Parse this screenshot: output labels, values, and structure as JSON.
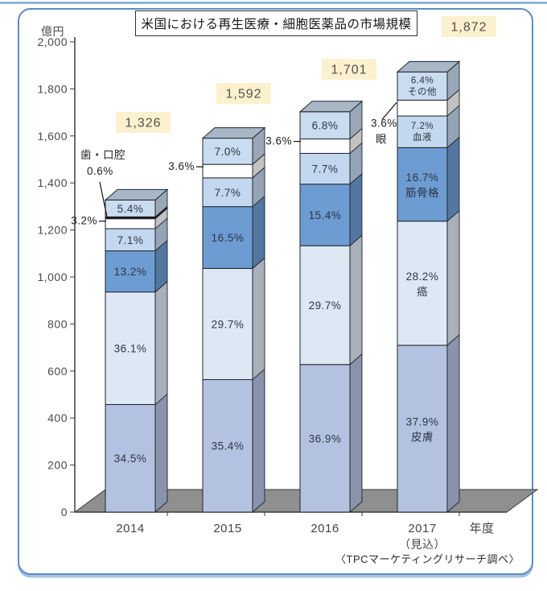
{
  "frame": {
    "title": "米国における再生医療・細胞医薬品の市場規模",
    "source": "〈TPCマーケティングリサーチ調べ〉",
    "accent_border_color": "#5d8cc4"
  },
  "chart_data": {
    "type": "bar",
    "variant": "stacked-pseudo-3d",
    "title": "米国における再生医療・細胞医薬品の市場規模",
    "unit_label": "億円",
    "xlabel": "年度",
    "source": "〈TPCマーケティングリサーチ調べ〉",
    "ylim": [
      0,
      2000
    ],
    "ytick_labels": [
      "0",
      "200",
      "400",
      "600",
      "800",
      "1,000",
      "1,200",
      "1,400",
      "1,600",
      "1,800",
      "2,000"
    ],
    "grid": "off",
    "legend": "none",
    "categories": [
      "2014",
      "2015",
      "2016",
      "2017"
    ],
    "category_notes": [
      "",
      "",
      "",
      "（見込）"
    ],
    "totals": [
      1326,
      1592,
      1701,
      1872
    ],
    "total_labels": [
      "1,326",
      "1,592",
      "1,701",
      "1,872"
    ],
    "total_label_bg": "#fcf1cf",
    "series": [
      {
        "id": "skin",
        "name": "皮膚",
        "color": "#b4c2e1",
        "values": [
          34.5,
          35.4,
          36.9,
          37.9
        ]
      },
      {
        "id": "cancer",
        "name": "癌",
        "color": "#dde8f5",
        "values": [
          36.1,
          29.7,
          29.7,
          28.2
        ]
      },
      {
        "id": "musculoskeletal",
        "name": "筋骨格",
        "color": "#6d9cd2",
        "values": [
          13.2,
          16.5,
          15.4,
          16.7
        ]
      },
      {
        "id": "blood",
        "name": "血液",
        "color": "#c3d8ef",
        "values": [
          7.1,
          7.7,
          7.7,
          7.2
        ]
      },
      {
        "id": "eye",
        "name": "眼",
        "color": "#ffffff",
        "values": [
          3.2,
          3.6,
          3.6,
          3.6
        ]
      },
      {
        "id": "dental-oral",
        "name": "歯・口腔",
        "color": "#181818",
        "values": [
          0.6,
          0,
          0,
          0
        ]
      },
      {
        "id": "other",
        "name": "その他",
        "color": "#cadcef",
        "values": [
          5.4,
          7.0,
          6.8,
          6.4
        ]
      }
    ],
    "bar_label_styles": [
      "percent",
      "percent",
      "percent",
      "percent-and-name"
    ],
    "hidden_in_bar": [
      "eye",
      "dental-oral"
    ],
    "callouts": [
      {
        "bar": 0,
        "series": "dental-oral",
        "lines": [
          "歯・口腔",
          "0.6%"
        ]
      },
      {
        "bar": 0,
        "series": "eye",
        "lines": [
          "3.2%"
        ]
      },
      {
        "bar": 1,
        "series": "eye",
        "lines": [
          "3.6%"
        ]
      },
      {
        "bar": 2,
        "series": "eye",
        "lines": [
          "3.6%"
        ]
      },
      {
        "bar": 3,
        "series": "eye",
        "lines": [
          "3.6%",
          "眼"
        ]
      }
    ]
  }
}
